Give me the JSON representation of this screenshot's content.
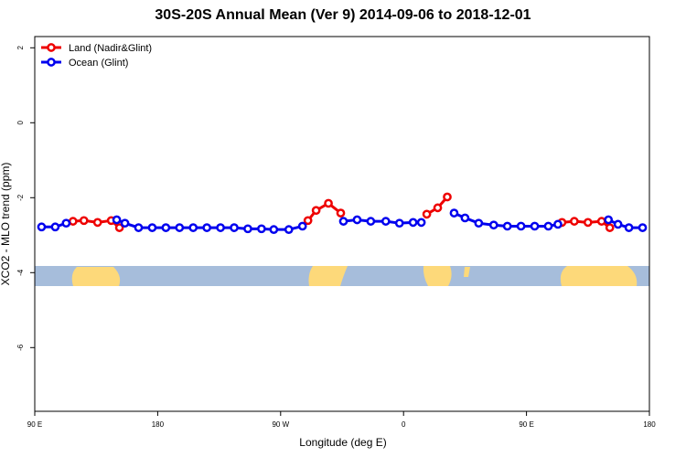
{
  "chart_data": {
    "type": "line",
    "title": "30S-20S Annual Mean (Ver 9)   2014-09-06 to 2018-12-01",
    "x_label": "Longitude (deg E)",
    "y_label": "XCO2 - MLO trend (ppm)",
    "xlim": [
      90,
      540
    ],
    "xticks": [
      {
        "value": 90,
        "label": "90 E"
      },
      180,
      {
        "value": 270,
        "label": "90 W"
      },
      {
        "value": 360,
        "label": "0"
      },
      {
        "value": 450,
        "label": "90 E"
      },
      {
        "value": 540,
        "label": "180"
      }
    ],
    "ylim": [
      -7.7,
      2.3
    ],
    "yticks": [
      2,
      0,
      -2,
      -4,
      -6
    ],
    "legend": "top-left",
    "series": [
      {
        "name": "Land (Nadir&Glint)",
        "color": "#ee0000",
        "x": [
          118,
          126,
          136,
          146,
          152,
          null,
          290,
          296,
          305,
          314,
          null,
          377,
          385,
          392,
          null,
          476,
          485,
          495,
          505,
          511
        ],
        "values": [
          -2.63,
          -2.61,
          -2.66,
          -2.61,
          -2.8,
          null,
          -2.61,
          -2.34,
          -2.15,
          -2.41,
          null,
          -2.44,
          -2.27,
          -1.98,
          null,
          -2.66,
          -2.63,
          -2.66,
          -2.63,
          -2.8
        ]
      },
      {
        "name": "Ocean (Glint)",
        "color": "#0000ee",
        "x": [
          95,
          105,
          113,
          null,
          150,
          156,
          166,
          176,
          186,
          196,
          206,
          216,
          226,
          236,
          246,
          256,
          265,
          276,
          286,
          null,
          316,
          326,
          336,
          347,
          357,
          367,
          373,
          null,
          397,
          405,
          415,
          426,
          436,
          446,
          456,
          466,
          473,
          null,
          510,
          517,
          525,
          535
        ],
        "values": [
          -2.78,
          -2.78,
          -2.68,
          null,
          -2.59,
          -2.68,
          -2.8,
          -2.8,
          -2.8,
          -2.8,
          -2.8,
          -2.8,
          -2.8,
          -2.8,
          -2.83,
          -2.83,
          -2.85,
          -2.85,
          -2.76,
          null,
          -2.63,
          -2.59,
          -2.63,
          -2.63,
          -2.68,
          -2.66,
          -2.66,
          null,
          -2.41,
          -2.54,
          -2.68,
          -2.73,
          -2.76,
          -2.76,
          -2.76,
          -2.76,
          -2.71,
          null,
          -2.59,
          -2.71,
          -2.8,
          -2.8
        ]
      }
    ]
  }
}
